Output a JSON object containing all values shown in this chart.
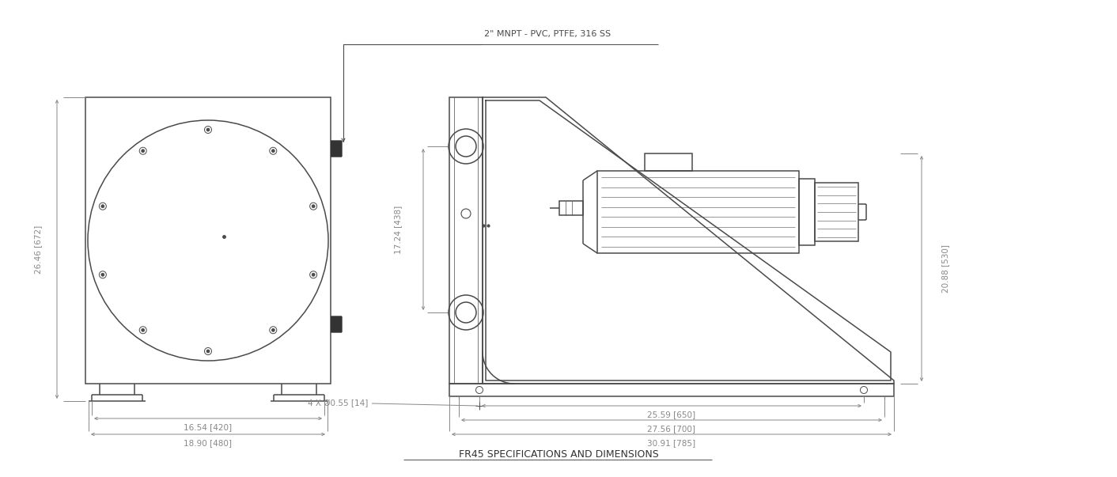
{
  "bg_color": "#ffffff",
  "line_color": "#4a4a4a",
  "dim_color": "#888888",
  "text_color": "#555555",
  "annotation_label": "2\" MNPT - PVC, PTFE, 316 SS",
  "dim_left_height": "26.46 [672]",
  "dim_left_width1": "16.54 [420]",
  "dim_left_width2": "18.90 [480]",
  "dim_right_height1": "17.24 [438]",
  "dim_right_height2": "20.88 [530]",
  "dim_right_width1": "25.59 [650]",
  "dim_right_width2": "27.56 [700]",
  "dim_right_width3": "30.91 [785]",
  "dim_bolt": "4 X Ø0.55 [14]",
  "fig_width": 14.12,
  "fig_height": 6.03
}
